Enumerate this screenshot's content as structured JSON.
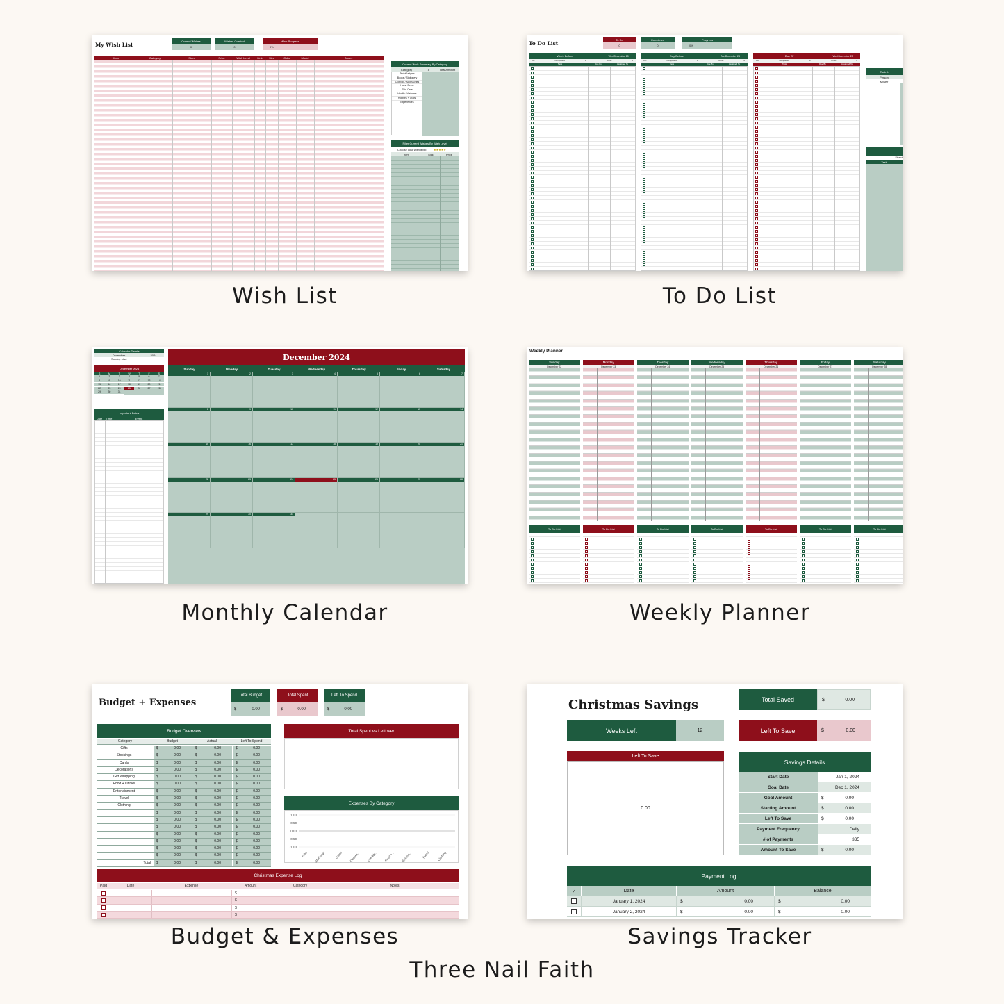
{
  "captions": {
    "wish_list": "Wish List",
    "todo": "To Do List",
    "calendar": "Monthly Calendar",
    "weekly": "Weekly Planner",
    "budget": "Budget & Expenses",
    "savings": "Savings Tracker",
    "brand": "Three Nail Faith"
  },
  "wish": {
    "title": "My Wish List",
    "stat_current": "Current Wishes",
    "stat_granted": "Wishes Granted",
    "stat_progress": "Wish Progress",
    "val_current": "0",
    "val_granted": "0",
    "val_progress": "0%",
    "columns": [
      "Item",
      "Category",
      "Store",
      "Price",
      "Wish Level",
      "Link",
      "Size",
      "Color",
      "Model",
      "Notes"
    ],
    "summary_title": "Current Wish Summary By Category",
    "summary_cols": [
      "Category",
      "#",
      "Total Amount"
    ],
    "summary_rows": [
      "Tech/Gadgets",
      "Books / Stationery",
      "Clothing / Accessories",
      "Home Decor",
      "Skin Care",
      "Health / Wellness",
      "Hobbies + Crafts",
      "Experiences"
    ],
    "zero": "0",
    "dollar": "$",
    "amount": "0.00",
    "filter_title": "Filter Current Wishes By Wish Level",
    "filter_label": "Choose your wish level:",
    "filter_stars": "★★★★★",
    "filter_cols": [
      "Item",
      "Link",
      "Price"
    ]
  },
  "todo": {
    "title": "To Do List",
    "stat_todo": "To Do",
    "stat_completed": "Completed",
    "stat_progress": "Progress",
    "val_todo": "0",
    "val_completed": "0",
    "val_progress": "0%",
    "columns": [
      {
        "name": "Week Before",
        "date": "Wed December 18",
        "color": "#1e5b3f"
      },
      {
        "name": "Day Before",
        "date": "Tue December 24",
        "color": "#1e5b3f"
      },
      {
        "name": "Day Of",
        "date": "Wed December 25",
        "color": "#8e0f1b"
      }
    ],
    "sub": [
      "0%",
      "Completed",
      "0",
      "To Do",
      "0"
    ],
    "col_heads": [
      "Task",
      "Due By",
      "Assigned To"
    ],
    "side_head": "Task A",
    "side_person": "Person",
    "side_myself": "Myself",
    "side_direct": "Direct",
    "side_task": "Task"
  },
  "calendar": {
    "details_title": "Calendar Details",
    "month": "December",
    "year": "2024",
    "start": "Sunday start",
    "mini_title": "December 2024",
    "mini_days": [
      "S",
      "M",
      "T",
      "W",
      "T",
      "F",
      "S"
    ],
    "mini_dates": [
      "1",
      "2",
      "3",
      "4",
      "5",
      "6",
      "7",
      "8",
      "9",
      "10",
      "11",
      "12",
      "13",
      "14",
      "15",
      "16",
      "17",
      "18",
      "19",
      "20",
      "21",
      "22",
      "23",
      "24",
      "25",
      "26",
      "27",
      "28",
      "29",
      "30",
      "31"
    ],
    "important_title": "Important Dates",
    "important_cols": [
      "Date",
      "Time",
      "Event"
    ],
    "title": "December 2024",
    "weekdays": [
      "Sunday",
      "Monday",
      "Tuesday",
      "Wednesday",
      "Thursday",
      "Friday",
      "Saturday"
    ],
    "weeks": [
      [
        "1",
        "2",
        "3",
        "4",
        "5",
        "6",
        "7"
      ],
      [
        "8",
        "9",
        "10",
        "11",
        "12",
        "13",
        "14"
      ],
      [
        "15",
        "16",
        "17",
        "18",
        "19",
        "20",
        "21"
      ],
      [
        "22",
        "23",
        "24",
        "25",
        "26",
        "27",
        "28"
      ],
      [
        "29",
        "30",
        "31",
        "",
        "",
        "",
        ""
      ]
    ]
  },
  "weekly": {
    "title": "Weekly Planner",
    "days": [
      {
        "name": "Sunday",
        "date": "December 22",
        "color": "#1e5b3f"
      },
      {
        "name": "Monday",
        "date": "December 23",
        "color": "#8e0f1b"
      },
      {
        "name": "Tuesday",
        "date": "December 24",
        "color": "#1e5b3f"
      },
      {
        "name": "Wednesday",
        "date": "December 25",
        "color": "#1e5b3f"
      },
      {
        "name": "Thursday",
        "date": "December 26",
        "color": "#8e0f1b"
      },
      {
        "name": "Friday",
        "date": "December 27",
        "color": "#1e5b3f"
      },
      {
        "name": "Saturday",
        "date": "December 28",
        "color": "#1e5b3f"
      }
    ],
    "todo_label": "To Do List"
  },
  "budget": {
    "title": "Budget + Expenses",
    "total_budget": "Total Budget",
    "total_spent": "Total Spent",
    "left_to_spend": "Left To Spend",
    "dollar": "$",
    "zero": "0.00",
    "overview_title": "Budget Overview",
    "overview_cols": [
      "Category",
      "Budget",
      "Actual",
      "Left To Spend"
    ],
    "categories": [
      "Gifts",
      "Stockings",
      "Cards",
      "Decorations",
      "Gift Wrapping",
      "Food + Drinks",
      "Entertainment",
      "Travel",
      "Clothing",
      "",
      "",
      "",
      "",
      "",
      "",
      ""
    ],
    "total_label": "Total",
    "chart1_title": "Total Spent vs Leftover",
    "chart2_title": "Expenses By Category",
    "chart_data": {
      "type": "bar",
      "title": "Expenses By Category",
      "categories": [
        "Gifts",
        "Stockings",
        "Cards",
        "Decora...",
        "Gift Wr...",
        "Food +...",
        "Enterta...",
        "Travel",
        "Clothing"
      ],
      "values": [
        0,
        0,
        0,
        0,
        0,
        0,
        0,
        0,
        0
      ],
      "y_ticks": [
        "1.00",
        "0.50",
        "0.00",
        "-0.50",
        "-1.00"
      ],
      "ylim": [
        -1,
        1
      ]
    },
    "log_title": "Christmas Expense Log",
    "log_cols": [
      "Paid",
      "Date",
      "Expense",
      "Amount",
      "Category",
      "Notes"
    ]
  },
  "savings": {
    "title": "Christmas Savings",
    "total_saved": "Total Saved",
    "weeks_left": "Weeks Left",
    "weeks_left_val": "12",
    "left_to_save": "Left To Save",
    "dollar": "$",
    "zero": "0.00",
    "panel_title": "Left To Save",
    "panel_value": "0.00",
    "details_title": "Savings Details",
    "details": [
      {
        "label": "Start Date",
        "dollar": "",
        "value": "Jan 1, 2024"
      },
      {
        "label": "Goal Date",
        "dollar": "",
        "value": "Dec 1, 2024"
      },
      {
        "label": "Goal Amount",
        "dollar": "$",
        "value": "0.00"
      },
      {
        "label": "Starting Amount",
        "dollar": "$",
        "value": "0.00"
      },
      {
        "label": "Left To Save",
        "dollar": "$",
        "value": "0.00"
      },
      {
        "label": "Payment Frequency",
        "dollar": "",
        "value": "Daily"
      },
      {
        "label": "# of Payments",
        "dollar": "",
        "value": "335"
      },
      {
        "label": "Amount To Save",
        "dollar": "$",
        "value": "0.00"
      }
    ],
    "log_title": "Payment Log",
    "log_check": "✓",
    "log_cols": [
      "Date",
      "Amount",
      "Balance"
    ],
    "log_rows": [
      {
        "date": "January 1, 2024",
        "amount": "0.00",
        "balance": "0.00"
      },
      {
        "date": "January 2, 2024",
        "amount": "0.00",
        "balance": "0.00"
      }
    ]
  }
}
